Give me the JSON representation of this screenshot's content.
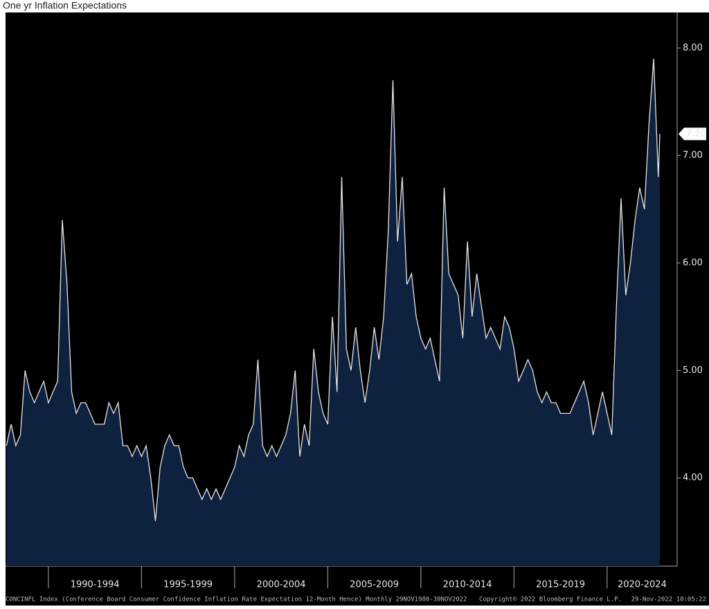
{
  "chart_data": {
    "type": "area",
    "title": "One yr Inflation Expectations",
    "footer_left": "CONCINFL Index (Conference Board Consumer Confidence Inflation Rate Expectation 12-Month Hence)  Monthly 29NOV1980-30NOV2022",
    "footer_center": "Copyright© 2022 Bloomberg Finance L.P.",
    "footer_right": "29-Nov-2022 10:05:22",
    "last_value_label": "7.20",
    "line_color": "#e6e6e6",
    "fill_color": "#0e2240",
    "xlim": [
      1987.7,
      2023.76
    ],
    "ylim": [
      3.18,
      8.33
    ],
    "xticks": [
      {
        "value": 1990,
        "label": "1990-1994"
      },
      {
        "value": 1995,
        "label": "1995-1999"
      },
      {
        "value": 2000,
        "label": "2000-2004"
      },
      {
        "value": 2005,
        "label": "2005-2009"
      },
      {
        "value": 2010,
        "label": "2010-2014"
      },
      {
        "value": 2015,
        "label": "2015-2019"
      },
      {
        "value": 2020,
        "label": "2020-2024"
      }
    ],
    "yticks": [
      {
        "value": 4,
        "label": "4.00"
      },
      {
        "value": 5,
        "label": "5.00"
      },
      {
        "value": 6,
        "label": "6.00"
      },
      {
        "value": 7,
        "label": "7.00"
      },
      {
        "value": 8,
        "label": "8.00"
      }
    ],
    "x": [
      1987.75,
      1988,
      1988.25,
      1988.5,
      1988.75,
      1989,
      1989.25,
      1989.5,
      1989.75,
      1990,
      1990.25,
      1990.5,
      1990.75,
      1991,
      1991.25,
      1991.5,
      1991.75,
      1992,
      1992.25,
      1992.5,
      1992.75,
      1993,
      1993.25,
      1993.5,
      1993.75,
      1994,
      1994.25,
      1994.5,
      1994.75,
      1995,
      1995.25,
      1995.5,
      1995.75,
      1996,
      1996.25,
      1996.5,
      1996.75,
      1997,
      1997.25,
      1997.5,
      1997.75,
      1998,
      1998.25,
      1998.5,
      1998.75,
      1999,
      1999.25,
      1999.5,
      1999.75,
      2000,
      2000.25,
      2000.5,
      2000.75,
      2001,
      2001.25,
      2001.5,
      2001.75,
      2002,
      2002.25,
      2002.5,
      2002.75,
      2003,
      2003.25,
      2003.5,
      2003.75,
      2004,
      2004.25,
      2004.5,
      2004.75,
      2005,
      2005.25,
      2005.5,
      2005.75,
      2006,
      2006.25,
      2006.5,
      2006.75,
      2007,
      2007.25,
      2007.5,
      2007.75,
      2008,
      2008.25,
      2008.5,
      2008.75,
      2009,
      2009.25,
      2009.5,
      2009.75,
      2010,
      2010.25,
      2010.5,
      2010.75,
      2011,
      2011.25,
      2011.5,
      2011.75,
      2012,
      2012.25,
      2012.5,
      2012.75,
      2013,
      2013.25,
      2013.5,
      2013.75,
      2014,
      2014.25,
      2014.5,
      2014.75,
      2015,
      2015.25,
      2015.5,
      2015.75,
      2016,
      2016.25,
      2016.5,
      2016.75,
      2017,
      2017.25,
      2017.5,
      2017.75,
      2018,
      2018.25,
      2018.5,
      2018.75,
      2019,
      2019.25,
      2019.5,
      2019.75,
      2020,
      2020.25,
      2020.5,
      2020.75,
      2021,
      2021.25,
      2021.5,
      2021.75,
      2022,
      2022.25,
      2022.5,
      2022.75,
      2022.83
    ],
    "values": [
      4.3,
      4.5,
      4.3,
      4.4,
      5.0,
      4.8,
      4.7,
      4.8,
      4.9,
      4.7,
      4.8,
      4.9,
      6.4,
      5.8,
      4.8,
      4.6,
      4.7,
      4.7,
      4.6,
      4.5,
      4.5,
      4.5,
      4.7,
      4.6,
      4.7,
      4.3,
      4.3,
      4.2,
      4.3,
      4.2,
      4.3,
      4.0,
      3.6,
      4.1,
      4.3,
      4.4,
      4.3,
      4.3,
      4.1,
      4.0,
      4.0,
      3.9,
      3.8,
      3.9,
      3.8,
      3.9,
      3.8,
      3.9,
      4.0,
      4.1,
      4.3,
      4.2,
      4.4,
      4.5,
      5.1,
      4.3,
      4.2,
      4.3,
      4.2,
      4.3,
      4.4,
      4.6,
      5.0,
      4.2,
      4.5,
      4.3,
      5.2,
      4.8,
      4.6,
      4.5,
      5.5,
      4.8,
      6.8,
      5.2,
      5.0,
      5.4,
      5.0,
      4.7,
      5.0,
      5.4,
      5.1,
      5.5,
      6.3,
      7.7,
      6.2,
      6.8,
      5.8,
      5.9,
      5.5,
      5.3,
      5.2,
      5.3,
      5.1,
      4.9,
      6.7,
      5.9,
      5.8,
      5.7,
      5.3,
      6.2,
      5.5,
      5.9,
      5.6,
      5.3,
      5.4,
      5.3,
      5.2,
      5.5,
      5.4,
      5.2,
      4.9,
      5.0,
      5.1,
      5.0,
      4.8,
      4.7,
      4.8,
      4.7,
      4.7,
      4.6,
      4.6,
      4.6,
      4.7,
      4.8,
      4.9,
      4.7,
      4.4,
      4.6,
      4.8,
      4.6,
      4.4,
      5.6,
      6.6,
      5.7,
      6.0,
      6.4,
      6.7,
      6.5,
      7.3,
      7.9,
      6.8,
      7.2
    ]
  }
}
